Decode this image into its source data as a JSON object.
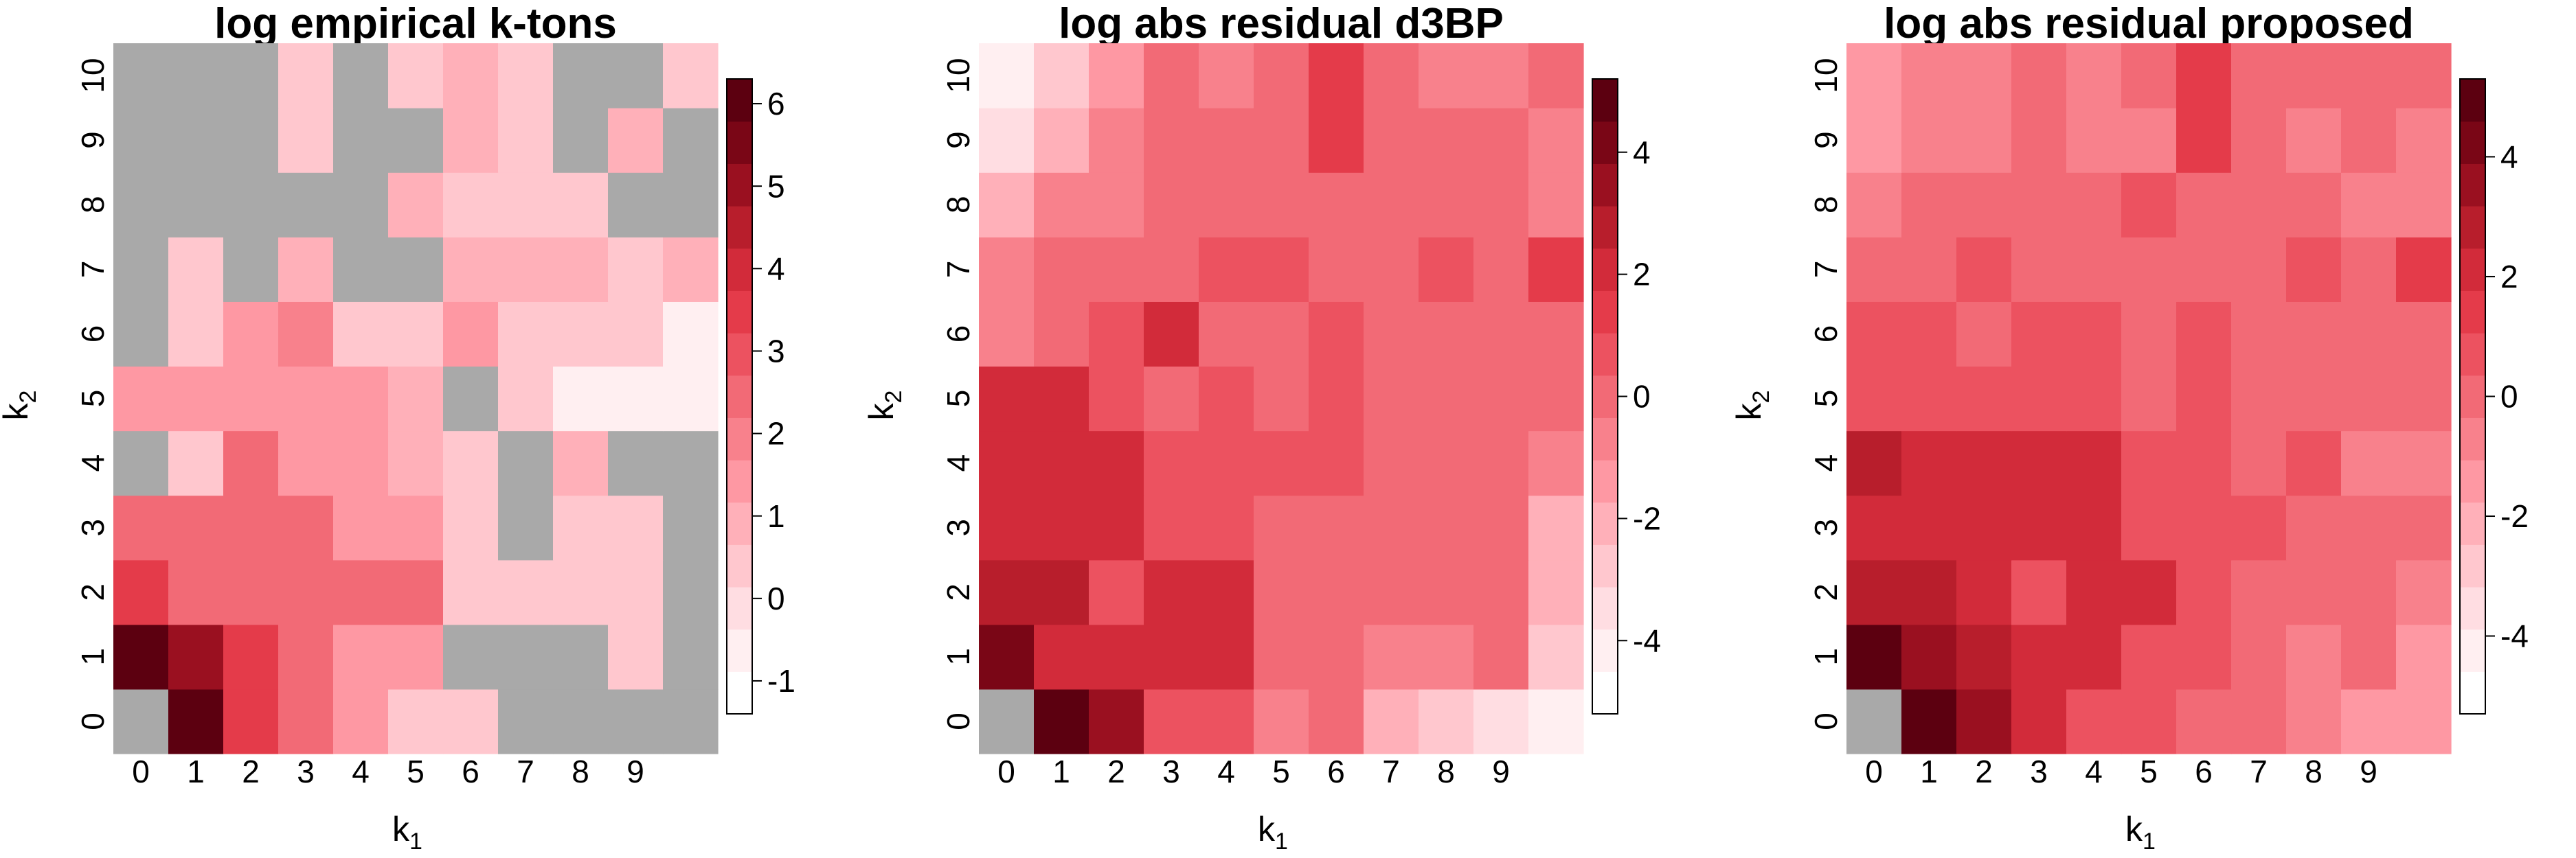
{
  "palette": {
    "na": "#A9A9A9",
    "ramp": [
      "#FFFFFF",
      "#FFEFF1",
      "#FFDDE2",
      "#FFC7CE",
      "#FFB0B9",
      "#FE98A3",
      "#F8818C",
      "#F26A76",
      "#EC5260",
      "#E43B4A",
      "#D22B3A",
      "#B81E2C",
      "#9A1020",
      "#7A0616",
      "#5C0010"
    ]
  },
  "panels": [
    {
      "title": "log empirical k-tons",
      "xlabel": "k",
      "xlabel_sub": "1",
      "ylabel": "k",
      "ylabel_sub": "2",
      "xticks": [
        "0",
        "1",
        "2",
        "3",
        "4",
        "5",
        "6",
        "7",
        "8",
        "9"
      ],
      "yticks": [
        "0",
        "1",
        "2",
        "3",
        "4",
        "5",
        "6",
        "7",
        "8",
        "9",
        "10"
      ],
      "legend_range": [
        -1.4,
        6.3
      ],
      "legend_ticks": [
        "-1",
        "0",
        "1",
        "2",
        "3",
        "4",
        "5",
        "6"
      ],
      "legend_tick_values": [
        -1,
        0,
        1,
        2,
        3,
        4,
        5,
        6
      ],
      "grid": [
        [
          null,
          6.1,
          3.5,
          2.2,
          1.5,
          0.2,
          0.2,
          null,
          null,
          null,
          null
        ],
        [
          6.0,
          4.8,
          3.5,
          2.2,
          1.2,
          1.2,
          null,
          null,
          null,
          0.2,
          null
        ],
        [
          3.5,
          2.7,
          2.7,
          2.3,
          2.3,
          2.3,
          0.2,
          0.2,
          0.2,
          0.2,
          null
        ],
        [
          2.7,
          2.7,
          2.7,
          2.2,
          1.5,
          1.2,
          0.2,
          null,
          0.2,
          0.2,
          null
        ],
        [
          null,
          0.2,
          2.2,
          1.5,
          1.5,
          0.8,
          0.2,
          null,
          0.8,
          null,
          null
        ],
        [
          1.5,
          1.5,
          1.5,
          1.2,
          1.2,
          0.8,
          null,
          0.2,
          -0.8,
          -0.8,
          -0.8
        ],
        [
          null,
          0.2,
          1.2,
          1.8,
          0.2,
          0.2,
          1.2,
          0.2,
          0.2,
          0.2,
          -0.8
        ],
        [
          null,
          0.2,
          null,
          0.8,
          null,
          null,
          0.8,
          0.8,
          0.8,
          0.2,
          0.8
        ],
        [
          null,
          null,
          null,
          null,
          null,
          0.8,
          0.2,
          0.2,
          0.2,
          null,
          null
        ],
        [
          null,
          null,
          null,
          0.2,
          null,
          null,
          0.8,
          0.2,
          null,
          0.8,
          null
        ],
        [
          null,
          null,
          null,
          0.2,
          null,
          0.2,
          0.8,
          0.2,
          null,
          null,
          0.2
        ]
      ]
    },
    {
      "title": "log abs residual d3BP",
      "xlabel": "k",
      "xlabel_sub": "1",
      "ylabel": "k",
      "ylabel_sub": "2",
      "xticks": [
        "0",
        "1",
        "2",
        "3",
        "4",
        "5",
        "6",
        "7",
        "8",
        "9"
      ],
      "yticks": [
        "0",
        "1",
        "2",
        "3",
        "4",
        "5",
        "6",
        "7",
        "8",
        "9",
        "10"
      ],
      "legend_range": [
        -5.2,
        5.2
      ],
      "legend_ticks": [
        "-4",
        "-2",
        "0",
        "2",
        "4"
      ],
      "legend_tick_values": [
        -4,
        -2,
        0,
        2,
        4
      ],
      "grid": [
        [
          null,
          5.0,
          3.3,
          1.0,
          1.0,
          -1.0,
          0.1,
          -2.0,
          -2.6,
          -3.3,
          -4.5
        ],
        [
          4.2,
          2.4,
          1.8,
          1.8,
          1.8,
          0.1,
          0.1,
          -1.0,
          -1.0,
          0.1,
          -2.6
        ],
        [
          3.0,
          3.0,
          1.0,
          1.8,
          1.8,
          0.3,
          0.3,
          0.3,
          0.3,
          0.3,
          -2.0
        ],
        [
          2.4,
          2.4,
          2.4,
          1.0,
          1.0,
          0.3,
          0.3,
          0.3,
          0.3,
          0.3,
          -2.0
        ],
        [
          2.4,
          2.4,
          2.4,
          1.0,
          1.0,
          1.0,
          1.0,
          0.3,
          0.3,
          0.3,
          -1.0
        ],
        [
          2.4,
          2.4,
          1.0,
          0.1,
          1.0,
          0.1,
          1.0,
          0.3,
          0.3,
          0.3,
          0.3
        ],
        [
          -1.0,
          0.3,
          1.0,
          2.4,
          0.3,
          0.3,
          1.0,
          0.3,
          0.3,
          0.3,
          0.3
        ],
        [
          -1.0,
          0.3,
          0.3,
          0.3,
          1.0,
          1.0,
          0.3,
          0.3,
          1.0,
          0.3,
          1.2
        ],
        [
          -2.0,
          -1.0,
          -1.0,
          0.3,
          0.3,
          0.3,
          0.3,
          0.3,
          0.3,
          0.3,
          -1.0
        ],
        [
          -3.3,
          -2.0,
          -1.0,
          0.3,
          0.3,
          0.3,
          1.3,
          0.3,
          0.3,
          0.3,
          -1.0
        ],
        [
          -4.5,
          -2.6,
          -1.4,
          0.3,
          -0.6,
          0.3,
          1.3,
          0.3,
          -0.6,
          -0.6,
          0.3
        ]
      ]
    },
    {
      "title": "log abs residual proposed",
      "xlabel": "k",
      "xlabel_sub": "1",
      "ylabel": "k",
      "ylabel_sub": "2",
      "xticks": [
        "0",
        "1",
        "2",
        "3",
        "4",
        "5",
        "6",
        "7",
        "8",
        "9"
      ],
      "yticks": [
        "0",
        "1",
        "2",
        "3",
        "4",
        "5",
        "6",
        "7",
        "8",
        "9",
        "10"
      ],
      "legend_range": [
        -5.3,
        5.3
      ],
      "legend_ticks": [
        "-4",
        "-2",
        "0",
        "2",
        "4"
      ],
      "legend_tick_values": [
        -4,
        -2,
        0,
        2,
        4
      ],
      "grid": [
        [
          null,
          5.0,
          3.5,
          2.0,
          1.0,
          1.0,
          0.2,
          0.2,
          -1.0,
          -1.5,
          -1.5
        ],
        [
          5.0,
          3.5,
          3.0,
          2.0,
          2.0,
          1.0,
          1.0,
          0.2,
          -1.0,
          0.2,
          -1.5
        ],
        [
          3.0,
          3.0,
          2.0,
          1.0,
          2.0,
          2.0,
          1.0,
          0.2,
          0.2,
          0.2,
          -1.0
        ],
        [
          2.0,
          2.0,
          2.0,
          2.0,
          2.0,
          1.0,
          1.0,
          1.0,
          -0.2,
          -0.2,
          -0.2
        ],
        [
          3.0,
          2.0,
          2.0,
          2.0,
          2.0,
          1.0,
          1.0,
          0.2,
          1.0,
          -0.8,
          -0.8
        ],
        [
          1.0,
          1.0,
          1.0,
          1.0,
          1.0,
          0.2,
          1.0,
          0.2,
          0.2,
          0.2,
          0.2
        ],
        [
          1.0,
          1.0,
          0.2,
          1.0,
          1.0,
          0.2,
          1.0,
          0.2,
          0.2,
          0.2,
          0.2
        ],
        [
          0.2,
          0.2,
          1.0,
          0.2,
          0.2,
          0.2,
          0.2,
          0.2,
          1.0,
          0.2,
          1.2
        ],
        [
          -0.8,
          0.2,
          0.2,
          0.2,
          0.2,
          1.0,
          0.2,
          0.2,
          0.2,
          -0.5,
          -0.5
        ],
        [
          -1.2,
          -0.5,
          -0.5,
          0.2,
          -0.8,
          -0.8,
          1.2,
          0.2,
          -0.5,
          0.2,
          -0.5
        ],
        [
          -1.2,
          -0.5,
          -0.5,
          0.2,
          -0.8,
          0.2,
          1.2,
          0.2,
          0.2,
          0.2,
          0.2
        ]
      ]
    }
  ],
  "chart_data": [
    {
      "type": "heatmap",
      "title": "log empirical k-tons",
      "xlabel": "k1",
      "ylabel": "k2",
      "x": [
        0,
        1,
        2,
        3,
        4,
        5,
        6,
        7,
        8,
        9,
        10
      ],
      "y": [
        0,
        1,
        2,
        3,
        4,
        5,
        6,
        7,
        8,
        9,
        10
      ],
      "zlim": [
        -1.4,
        6.3
      ],
      "missing_shown_as": "grey"
    },
    {
      "type": "heatmap",
      "title": "log abs residual d3BP",
      "xlabel": "k1",
      "ylabel": "k2",
      "x": [
        0,
        1,
        2,
        3,
        4,
        5,
        6,
        7,
        8,
        9,
        10
      ],
      "y": [
        0,
        1,
        2,
        3,
        4,
        5,
        6,
        7,
        8,
        9,
        10
      ],
      "zlim": [
        -5.2,
        5.2
      ]
    },
    {
      "type": "heatmap",
      "title": "log abs residual proposed",
      "xlabel": "k1",
      "ylabel": "k2",
      "x": [
        0,
        1,
        2,
        3,
        4,
        5,
        6,
        7,
        8,
        9,
        10
      ],
      "y": [
        0,
        1,
        2,
        3,
        4,
        5,
        6,
        7,
        8,
        9,
        10
      ],
      "zlim": [
        -5.3,
        5.3
      ]
    }
  ]
}
